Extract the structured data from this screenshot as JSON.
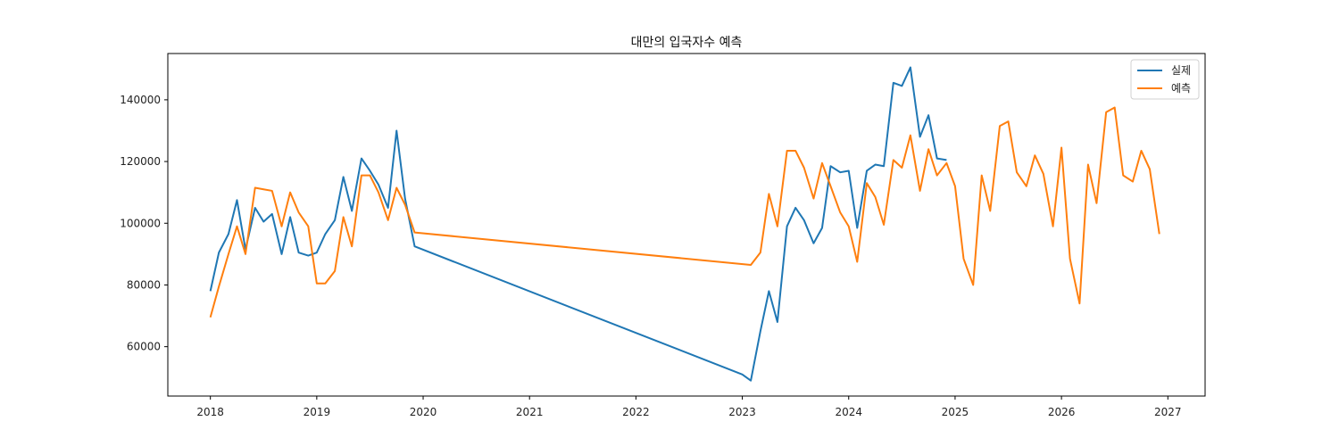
{
  "chart_data": {
    "type": "line",
    "title": "대만의 입국자수 예측",
    "xlabel": "",
    "ylabel": "",
    "xlim": [
      2017.6,
      2027.35
    ],
    "ylim": [
      44000,
      155000
    ],
    "xticks": [
      2018,
      2019,
      2020,
      2021,
      2022,
      2023,
      2024,
      2025,
      2026,
      2027
    ],
    "xtick_labels": [
      "2018",
      "2019",
      "2020",
      "2021",
      "2022",
      "2023",
      "2024",
      "2025",
      "2026",
      "2027"
    ],
    "yticks": [
      60000,
      80000,
      100000,
      120000,
      140000
    ],
    "ytick_labels": [
      "60000",
      "80000",
      "100000",
      "120000",
      "140000"
    ],
    "grid": false,
    "legend_position": "top-right",
    "colors": {
      "실제": "#1f77b4",
      "예측": "#ff7f0e"
    },
    "series": [
      {
        "name": "실제",
        "points": [
          [
            2018.0,
            78000
          ],
          [
            2018.08,
            90500
          ],
          [
            2018.17,
            96500
          ],
          [
            2018.25,
            107500
          ],
          [
            2018.33,
            91500
          ],
          [
            2018.42,
            105000
          ],
          [
            2018.5,
            100500
          ],
          [
            2018.58,
            103000
          ],
          [
            2018.67,
            90000
          ],
          [
            2018.75,
            102000
          ],
          [
            2018.83,
            90500
          ],
          [
            2018.92,
            89500
          ],
          [
            2019.0,
            90500
          ],
          [
            2019.08,
            96500
          ],
          [
            2019.17,
            101000
          ],
          [
            2019.25,
            115000
          ],
          [
            2019.33,
            104000
          ],
          [
            2019.42,
            121000
          ],
          [
            2019.5,
            117000
          ],
          [
            2019.58,
            112500
          ],
          [
            2019.67,
            105000
          ],
          [
            2019.75,
            130000
          ],
          [
            2019.83,
            108000
          ],
          [
            2019.92,
            92500
          ],
          [
            2023.0,
            51000
          ],
          [
            2023.08,
            49000
          ],
          [
            2023.17,
            65000
          ],
          [
            2023.25,
            78000
          ],
          [
            2023.33,
            68000
          ],
          [
            2023.42,
            99000
          ],
          [
            2023.5,
            105000
          ],
          [
            2023.58,
            101000
          ],
          [
            2023.67,
            93500
          ],
          [
            2023.75,
            98500
          ],
          [
            2023.83,
            118500
          ],
          [
            2023.92,
            116500
          ],
          [
            2024.0,
            117000
          ],
          [
            2024.08,
            98500
          ],
          [
            2024.17,
            117000
          ],
          [
            2024.25,
            119000
          ],
          [
            2024.33,
            118500
          ],
          [
            2024.42,
            145500
          ],
          [
            2024.5,
            144500
          ],
          [
            2024.58,
            150500
          ],
          [
            2024.67,
            128000
          ],
          [
            2024.75,
            135000
          ],
          [
            2024.83,
            121000
          ],
          [
            2024.92,
            120500
          ]
        ]
      },
      {
        "name": "예측",
        "points": [
          [
            2018.0,
            69500
          ],
          [
            2018.08,
            79500
          ],
          [
            2018.17,
            90000
          ],
          [
            2018.25,
            99000
          ],
          [
            2018.33,
            90000
          ],
          [
            2018.42,
            111500
          ],
          [
            2018.5,
            111000
          ],
          [
            2018.58,
            110500
          ],
          [
            2018.67,
            99000
          ],
          [
            2018.75,
            110000
          ],
          [
            2018.83,
            103500
          ],
          [
            2018.92,
            99000
          ],
          [
            2019.0,
            80500
          ],
          [
            2019.08,
            80500
          ],
          [
            2019.17,
            84500
          ],
          [
            2019.25,
            102000
          ],
          [
            2019.33,
            92500
          ],
          [
            2019.42,
            115500
          ],
          [
            2019.5,
            115500
          ],
          [
            2019.58,
            110000
          ],
          [
            2019.67,
            101000
          ],
          [
            2019.75,
            111500
          ],
          [
            2019.83,
            106000
          ],
          [
            2019.92,
            97000
          ],
          [
            2023.08,
            86500
          ],
          [
            2023.17,
            90500
          ],
          [
            2023.25,
            109500
          ],
          [
            2023.33,
            99000
          ],
          [
            2023.42,
            123500
          ],
          [
            2023.5,
            123500
          ],
          [
            2023.58,
            118000
          ],
          [
            2023.67,
            108000
          ],
          [
            2023.75,
            119500
          ],
          [
            2023.83,
            112000
          ],
          [
            2023.92,
            103500
          ],
          [
            2024.0,
            99000
          ],
          [
            2024.08,
            87500
          ],
          [
            2024.17,
            113000
          ],
          [
            2024.25,
            108500
          ],
          [
            2024.33,
            99500
          ],
          [
            2024.42,
            120500
          ],
          [
            2024.5,
            118000
          ],
          [
            2024.58,
            128500
          ],
          [
            2024.67,
            110500
          ],
          [
            2024.75,
            124000
          ],
          [
            2024.83,
            115500
          ],
          [
            2024.92,
            119500
          ],
          [
            2025.0,
            112000
          ],
          [
            2025.08,
            88500
          ],
          [
            2025.17,
            80000
          ],
          [
            2025.25,
            115500
          ],
          [
            2025.33,
            104000
          ],
          [
            2025.42,
            131500
          ],
          [
            2025.5,
            133000
          ],
          [
            2025.58,
            116500
          ],
          [
            2025.67,
            112000
          ],
          [
            2025.75,
            122000
          ],
          [
            2025.83,
            116000
          ],
          [
            2025.92,
            99000
          ],
          [
            2026.0,
            124500
          ],
          [
            2026.08,
            88500
          ],
          [
            2026.17,
            74000
          ],
          [
            2026.25,
            119000
          ],
          [
            2026.33,
            106500
          ],
          [
            2026.42,
            136000
          ],
          [
            2026.5,
            137500
          ],
          [
            2026.58,
            115500
          ],
          [
            2026.67,
            113500
          ],
          [
            2026.75,
            123500
          ],
          [
            2026.83,
            117500
          ],
          [
            2026.92,
            96500
          ]
        ]
      }
    ]
  }
}
